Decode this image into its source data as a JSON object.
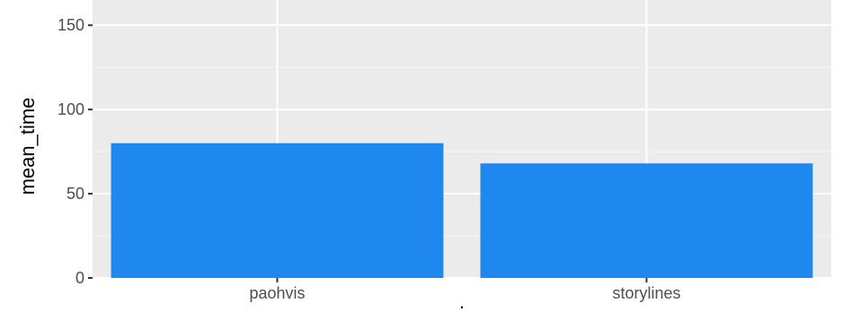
{
  "chart_data": {
    "type": "bar",
    "categories": [
      "paohvis",
      "storylines"
    ],
    "values": [
      80,
      68
    ],
    "xlabel": ".",
    "ylabel": "mean_time",
    "ylim": [
      0,
      165
    ],
    "yticks": [
      0,
      50,
      100,
      150
    ],
    "grid": true,
    "legend": "none",
    "colors": {
      "bar": "#1E88EE",
      "panel": "#EBEBEB",
      "grid_major": "#FFFFFF",
      "grid_minor": "#F5F5F5",
      "tick": "#333333"
    }
  }
}
